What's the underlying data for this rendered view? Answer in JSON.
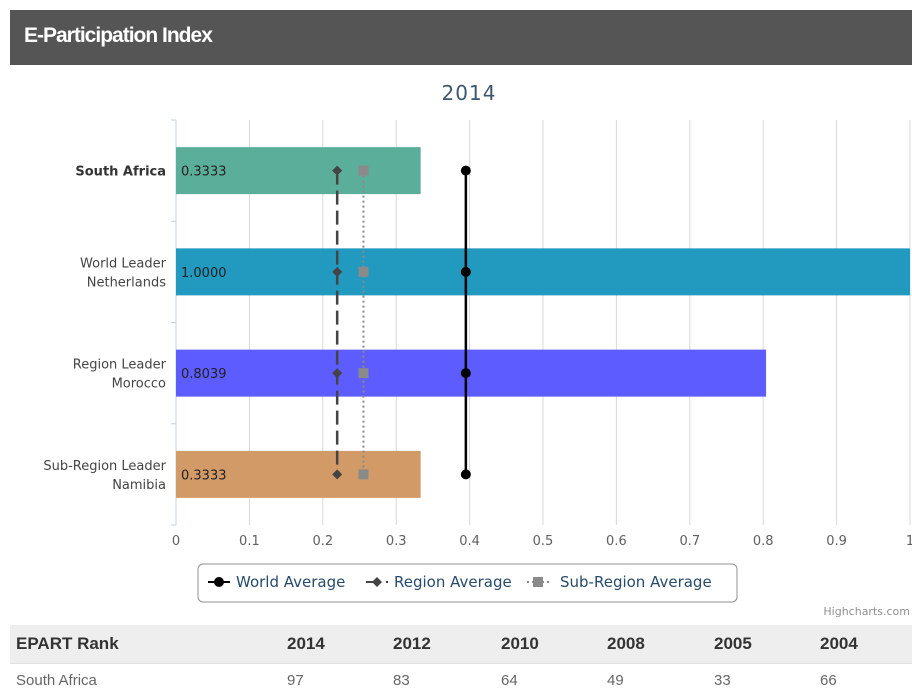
{
  "panel": {
    "title": "E-Participation Index"
  },
  "chart_data": {
    "type": "bar",
    "orientation": "horizontal",
    "title": "2014",
    "categories": [
      [
        "South Africa"
      ],
      [
        "World Leader",
        "Netherlands"
      ],
      [
        "Region Leader",
        "Morocco"
      ],
      [
        "Sub-Region Leader",
        "Namibia"
      ]
    ],
    "values": [
      0.3333,
      1.0,
      0.8039,
      0.3333
    ],
    "value_labels": [
      "0.3333",
      "1.0000",
      "0.8039",
      "0.3333"
    ],
    "bar_colors": [
      "#5bae9a",
      "#2299bf",
      "#5d5cff",
      "#d19a66"
    ],
    "xlim": [
      0,
      1
    ],
    "x_ticks": [
      0,
      0.1,
      0.2,
      0.3,
      0.4,
      0.5,
      0.6,
      0.7,
      0.8,
      0.9,
      1
    ],
    "x_tick_labels": [
      "0",
      "0.1",
      "0.2",
      "0.3",
      "0.4",
      "0.5",
      "0.6",
      "0.7",
      "0.8",
      "0.9",
      "1"
    ],
    "grid": true,
    "legend_position": "bottom-center",
    "series": [
      {
        "name": "World Average",
        "value": 0.3949,
        "style": "solid",
        "marker": "circle",
        "color": "#000000"
      },
      {
        "name": "Region Average",
        "value": 0.2196,
        "style": "dash",
        "marker": "diamond",
        "color": "#444444"
      },
      {
        "name": "Sub-Region Average",
        "value": 0.2554,
        "style": "dot",
        "marker": "square",
        "color": "#8a8a8a"
      }
    ]
  },
  "credits": "Highcharts.com",
  "rank_table": {
    "headers": [
      "EPART Rank",
      "2014",
      "2012",
      "2010",
      "2008",
      "2005",
      "2004"
    ],
    "rows": [
      [
        "South Africa",
        "97",
        "83",
        "64",
        "49",
        "33",
        "66"
      ]
    ]
  }
}
